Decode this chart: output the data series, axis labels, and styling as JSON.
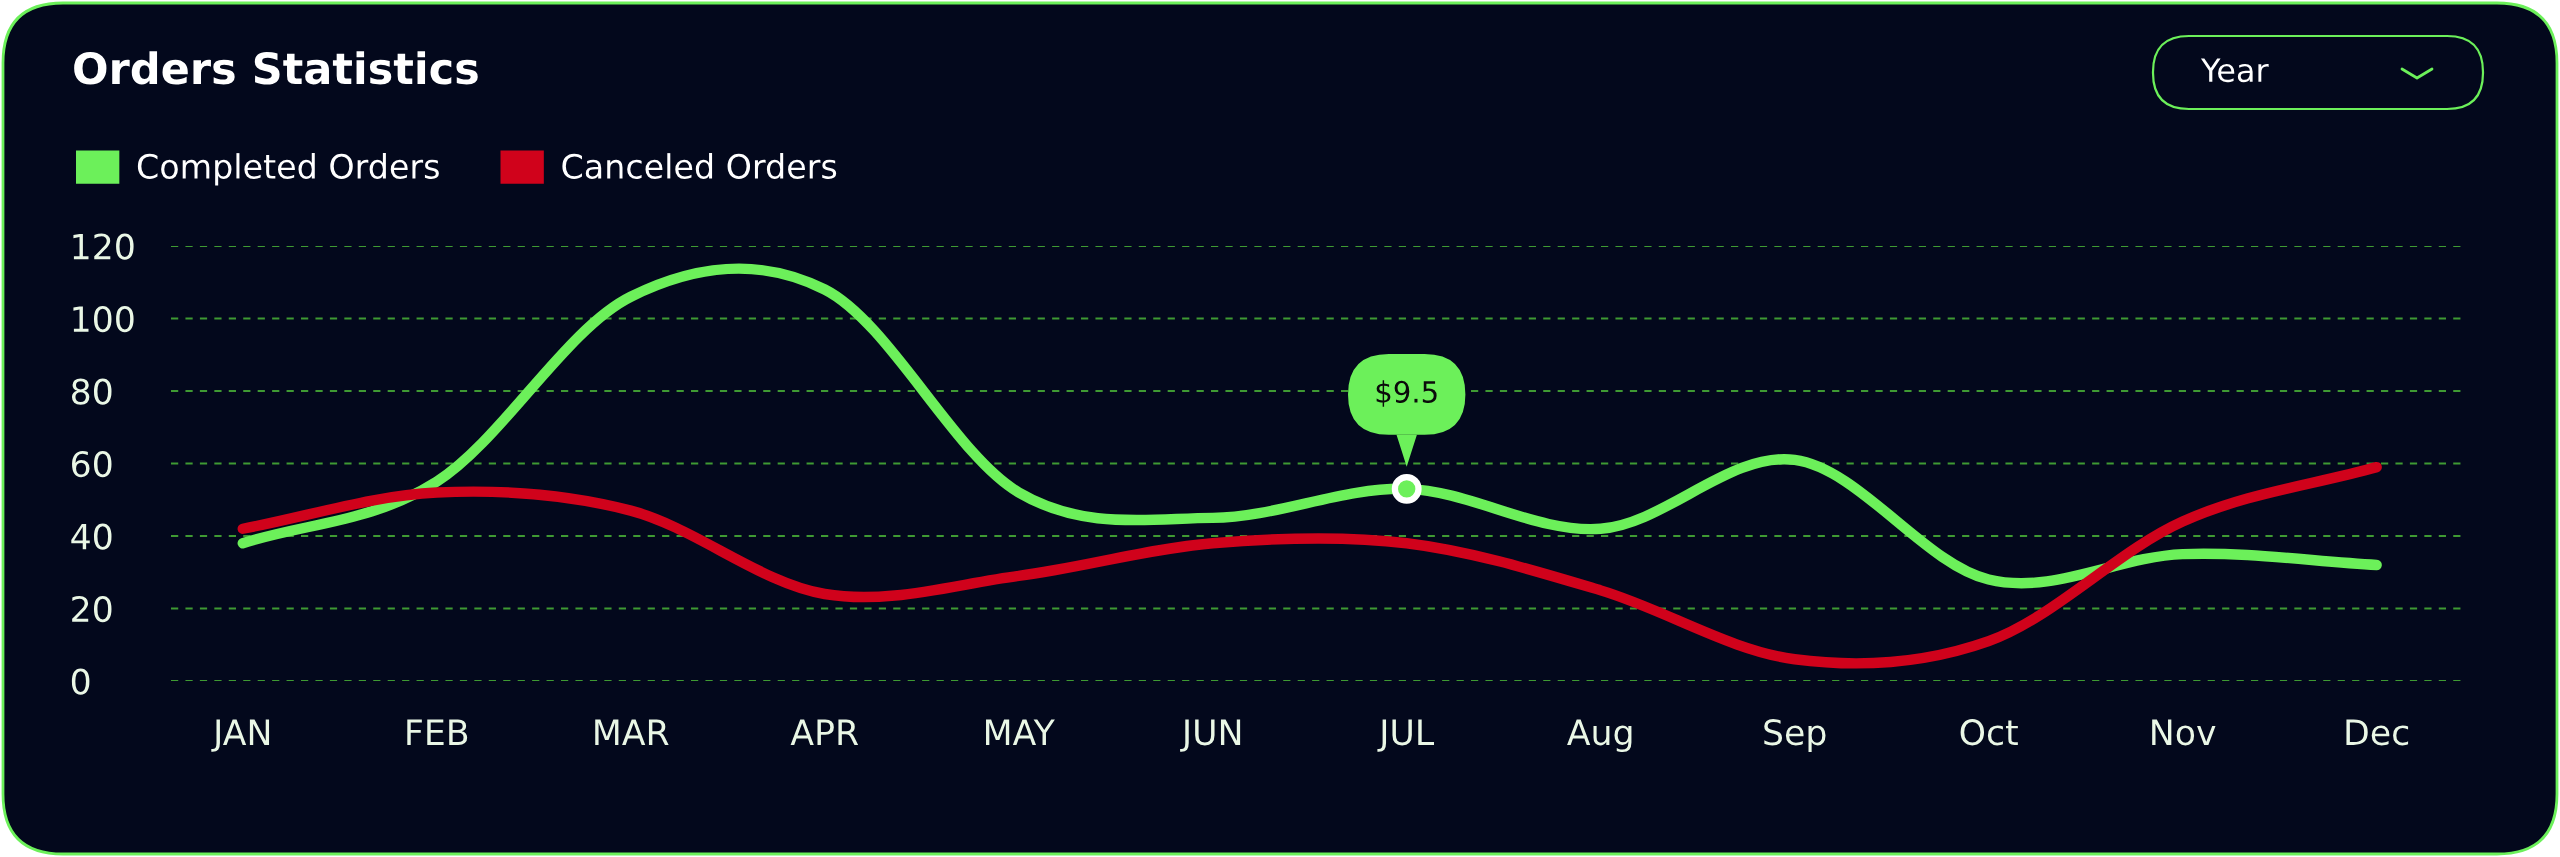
{
  "chart_data": {
    "type": "line",
    "title": "Orders Statistics",
    "categories": [
      "JAN",
      "FEB",
      "MAR",
      "APR",
      "MAY",
      "JUN",
      "JUL",
      "Aug",
      "Sep",
      "Oct",
      "Nov",
      "Dec"
    ],
    "series": [
      {
        "name": "Completed Orders",
        "color": "#6cf05a",
        "values": [
          38,
          55,
          106,
          108,
          52,
          45,
          53,
          42,
          61,
          28,
          35,
          32
        ]
      },
      {
        "name": "Canceled Orders",
        "color": "#d0021b",
        "values": [
          42,
          52,
          47,
          24,
          29,
          38,
          38,
          25,
          6,
          11,
          44,
          59
        ]
      }
    ],
    "ylim": [
      0,
      120
    ],
    "yticks": [
      0,
      20,
      40,
      60,
      80,
      100,
      120
    ],
    "grid": "y",
    "legend": "top left",
    "line_style": "solid",
    "marker": "none",
    "annotations": [
      {
        "text": "$9.5",
        "x": "JUL",
        "y": 53
      },
      "Year"
    ]
  }
}
